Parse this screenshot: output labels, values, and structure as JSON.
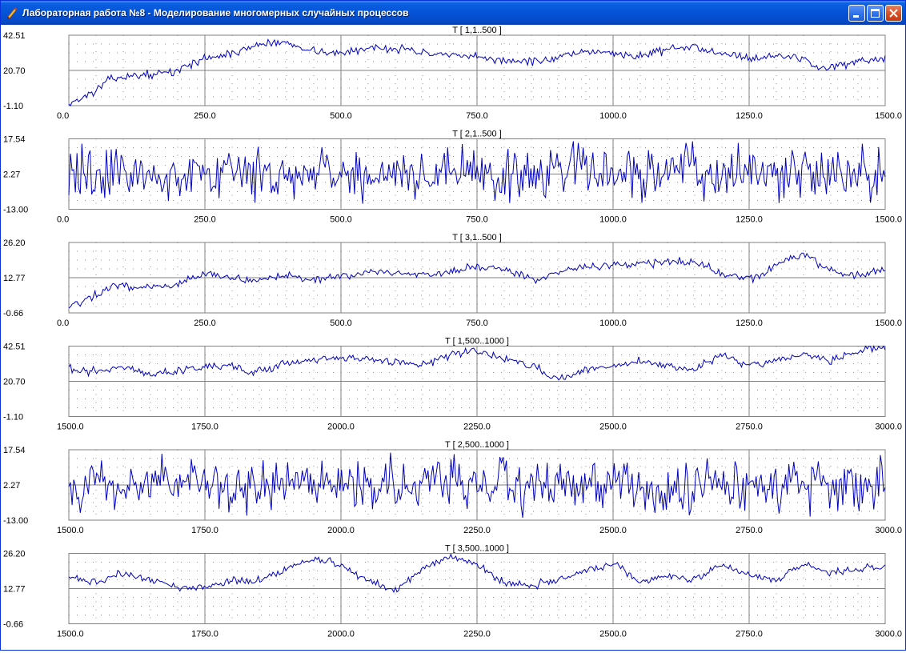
{
  "window": {
    "title": "Лабораторная работа №8 - Моделирование многомерных случайных процессов",
    "icons": {
      "app": "pen-icon",
      "minimize": "minimize-icon",
      "maximize": "maximize-icon",
      "close": "close-icon"
    },
    "colors": {
      "titlebar": "#0553d8",
      "close_button": "#d44b22"
    }
  },
  "chart_data": [
    {
      "type": "line",
      "title": "T [ 1,1..500 ]",
      "xlim": [
        0,
        1500
      ],
      "ylim": [
        -1.1,
        42.51
      ],
      "x_ticks": [
        "0.0",
        "250.0",
        "500.0",
        "750.0",
        "1000.0",
        "1250.0",
        "1500.0"
      ],
      "y_ticks": [
        "-1.10",
        "20.70",
        "42.51"
      ],
      "grid": true,
      "color": "#0000c0",
      "series": [
        {
          "x": [
            0,
            40,
            80,
            140,
            200,
            230,
            260,
            300,
            350,
            400,
            450,
            500,
            560,
            620,
            680,
            740,
            800,
            860,
            920,
            980,
            1040,
            1100,
            1150,
            1200,
            1260,
            1300,
            1350,
            1380,
            1420,
            1460,
            1500
          ],
          "y": [
            0,
            6,
            16,
            18,
            20,
            26,
            29,
            31,
            37,
            38,
            33,
            31,
            35,
            34,
            30,
            29,
            27,
            26,
            30,
            33,
            29,
            34,
            35,
            32,
            28,
            30,
            28,
            22,
            24,
            26,
            27
          ],
          "noise": 1.2
        }
      ]
    },
    {
      "type": "line",
      "title": "T [ 2,1..500 ]",
      "xlim": [
        0,
        1500
      ],
      "ylim": [
        -13.0,
        17.54
      ],
      "x_ticks": [
        "0.0",
        "250.0",
        "500.0",
        "750.0",
        "1000.0",
        "1250.0",
        "1500.0"
      ],
      "y_ticks": [
        "-13.00",
        "2.27",
        "17.54"
      ],
      "grid": true,
      "color": "#0000c0",
      "series": [
        {
          "x": [
            0,
            1500
          ],
          "y": [
            2.27,
            2.27
          ],
          "noise": 5.5
        }
      ]
    },
    {
      "type": "line",
      "title": "T [ 3,1..500 ]",
      "xlim": [
        0,
        1500
      ],
      "ylim": [
        -0.66,
        26.2
      ],
      "x_ticks": [
        "0.0",
        "250.0",
        "500.0",
        "750.0",
        "1000.0",
        "1250.0",
        "1500.0"
      ],
      "y_ticks": [
        "-0.66",
        "12.77",
        "26.20"
      ],
      "grid": true,
      "color": "#0000c0",
      "series": [
        {
          "x": [
            0,
            40,
            80,
            140,
            200,
            230,
            260,
            300,
            350,
            400,
            450,
            500,
            560,
            620,
            680,
            740,
            800,
            860,
            920,
            980,
            1040,
            1100,
            1150,
            1200,
            1260,
            1300,
            1350,
            1380,
            1420,
            1460,
            1500
          ],
          "y": [
            2,
            5,
            10,
            9,
            10,
            13,
            15,
            12,
            12,
            14,
            12,
            13,
            15,
            14,
            14,
            17,
            16,
            12,
            16,
            17,
            18,
            19,
            19,
            14,
            12,
            18,
            22,
            18,
            14,
            14,
            16
          ],
          "noise": 0.7
        }
      ]
    },
    {
      "type": "line",
      "title": "T [ 1,500..1000 ]",
      "xlim": [
        1500,
        3000
      ],
      "ylim": [
        -1.1,
        42.51
      ],
      "x_ticks": [
        "1500.0",
        "1750.0",
        "2000.0",
        "2250.0",
        "2500.0",
        "2750.0",
        "3000.0"
      ],
      "y_ticks": [
        "-1.10",
        "20.70",
        "42.51"
      ],
      "grid": true,
      "color": "#0000c0",
      "series": [
        {
          "x": [
            1500,
            1550,
            1600,
            1650,
            1700,
            1750,
            1800,
            1840,
            1900,
            1950,
            2000,
            2050,
            2100,
            2150,
            2200,
            2250,
            2300,
            2350,
            2400,
            2450,
            2500,
            2550,
            2600,
            2650,
            2700,
            2750,
            2800,
            2850,
            2900,
            2950,
            3000
          ],
          "y": [
            28,
            27,
            30,
            25,
            27,
            30,
            30,
            25,
            32,
            33,
            35,
            34,
            33,
            31,
            37,
            40,
            35,
            30,
            22,
            28,
            30,
            33,
            30,
            28,
            38,
            30,
            34,
            37,
            33,
            40,
            42
          ],
          "noise": 1.2
        }
      ]
    },
    {
      "type": "line",
      "title": "T [ 2,500..1000 ]",
      "xlim": [
        1500,
        3000
      ],
      "ylim": [
        -13.0,
        17.54
      ],
      "x_ticks": [
        "1500.0",
        "1750.0",
        "2000.0",
        "2250.0",
        "2500.0",
        "2750.0",
        "3000.0"
      ],
      "y_ticks": [
        "-13.00",
        "2.27",
        "17.54"
      ],
      "grid": true,
      "color": "#0000c0",
      "series": [
        {
          "x": [
            1500,
            3000
          ],
          "y": [
            2.27,
            2.27
          ],
          "noise": 5.5
        }
      ]
    },
    {
      "type": "line",
      "title": "T [ 3,500..1000 ]",
      "xlim": [
        1500,
        3000
      ],
      "ylim": [
        -0.66,
        26.2
      ],
      "x_ticks": [
        "1500.0",
        "1750.0",
        "2000.0",
        "2250.0",
        "2500.0",
        "2750.0",
        "3000.0"
      ],
      "y_ticks": [
        "-0.66",
        "12.77",
        "26.20"
      ],
      "grid": true,
      "color": "#0000c0",
      "series": [
        {
          "x": [
            1500,
            1550,
            1600,
            1650,
            1700,
            1750,
            1800,
            1840,
            1900,
            1950,
            2000,
            2050,
            2100,
            2150,
            2200,
            2250,
            2300,
            2350,
            2400,
            2450,
            2500,
            2550,
            2600,
            2650,
            2700,
            2750,
            2800,
            2850,
            2900,
            2950,
            3000
          ],
          "y": [
            17,
            15,
            19,
            16,
            13,
            13,
            16,
            15,
            20,
            24,
            22,
            16,
            12,
            20,
            25,
            22,
            15,
            14,
            16,
            20,
            22,
            15,
            18,
            16,
            22,
            18,
            16,
            22,
            19,
            20,
            21
          ],
          "noise": 0.7
        }
      ]
    }
  ]
}
